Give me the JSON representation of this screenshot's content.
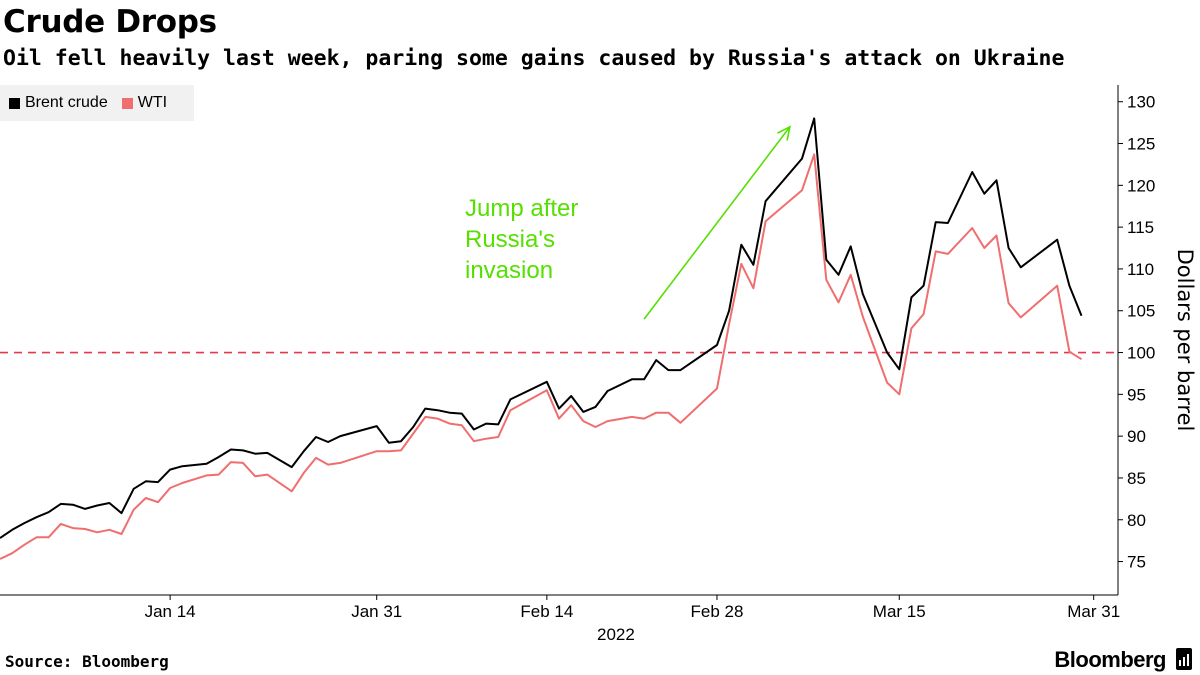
{
  "header": {
    "title": "Crude Drops",
    "subtitle": "Oil fell heavily last week, paring some gains caused by Russia's attack on Ukraine"
  },
  "footer": {
    "source": "Source: Bloomberg",
    "brand": "Bloomberg"
  },
  "chart_data": {
    "type": "line",
    "title": "Crude Drops",
    "subtitle": "Oil fell heavily last week, paring some gains caused by Russia's attack on Ukraine",
    "xlabel": "2022",
    "ylabel": "Dollars per barrel",
    "xlim": [
      "2021-12-31",
      "2022-04-02"
    ],
    "ylim": [
      71,
      132
    ],
    "y_ticks": [
      75,
      80,
      85,
      90,
      95,
      100,
      105,
      110,
      115,
      120,
      125,
      130
    ],
    "x_ticks": [
      {
        "date": "2022-01-14",
        "label": "Jan 14"
      },
      {
        "date": "2022-01-31",
        "label": "Jan 31"
      },
      {
        "date": "2022-02-14",
        "label": "Feb 14"
      },
      {
        "date": "2022-02-28",
        "label": "Feb 28"
      },
      {
        "date": "2022-03-15",
        "label": "Mar 15"
      },
      {
        "date": "2022-03-31",
        "label": "Mar 31"
      }
    ],
    "y_axis_side": "right",
    "grid": false,
    "legend_position": "top-left",
    "reference_line": {
      "value": 100,
      "color": "#e8374a",
      "style": "dashed"
    },
    "annotation": {
      "text": [
        "Jump after",
        "Russia's",
        "invasion"
      ],
      "color": "#55e000",
      "arrow_start": {
        "date": "2022-02-22",
        "value": 104
      },
      "arrow_end": {
        "date": "2022-03-06",
        "value": 127
      }
    },
    "series": [
      {
        "name": "Brent crude",
        "color": "#000000",
        "points": [
          [
            "2021-12-31",
            77.8
          ],
          [
            "2022-01-01",
            78.8
          ],
          [
            "2022-01-02",
            79.6
          ],
          [
            "2022-01-03",
            80.3
          ],
          [
            "2022-01-04",
            80.9
          ],
          [
            "2022-01-05",
            81.9
          ],
          [
            "2022-01-06",
            81.8
          ],
          [
            "2022-01-07",
            81.3
          ],
          [
            "2022-01-08",
            81.7
          ],
          [
            "2022-01-09",
            82.0
          ],
          [
            "2022-01-10",
            80.8
          ],
          [
            "2022-01-11",
            83.7
          ],
          [
            "2022-01-12",
            84.6
          ],
          [
            "2022-01-13",
            84.5
          ],
          [
            "2022-01-14",
            86.0
          ],
          [
            "2022-01-15",
            86.4
          ],
          [
            "2022-01-17",
            86.7
          ],
          [
            "2022-01-18",
            87.5
          ],
          [
            "2022-01-19",
            88.4
          ],
          [
            "2022-01-20",
            88.3
          ],
          [
            "2022-01-21",
            87.9
          ],
          [
            "2022-01-22",
            88.0
          ],
          [
            "2022-01-24",
            86.3
          ],
          [
            "2022-01-25",
            88.2
          ],
          [
            "2022-01-26",
            89.9
          ],
          [
            "2022-01-27",
            89.3
          ],
          [
            "2022-01-28",
            90.0
          ],
          [
            "2022-01-31",
            91.2
          ],
          [
            "2022-02-01",
            89.2
          ],
          [
            "2022-02-02",
            89.4
          ],
          [
            "2022-02-03",
            91.1
          ],
          [
            "2022-02-04",
            93.3
          ],
          [
            "2022-02-05",
            93.1
          ],
          [
            "2022-02-06",
            92.8
          ],
          [
            "2022-02-07",
            92.7
          ],
          [
            "2022-02-08",
            90.8
          ],
          [
            "2022-02-09",
            91.5
          ],
          [
            "2022-02-10",
            91.4
          ],
          [
            "2022-02-11",
            94.4
          ],
          [
            "2022-02-14",
            96.5
          ],
          [
            "2022-02-15",
            93.3
          ],
          [
            "2022-02-16",
            94.8
          ],
          [
            "2022-02-17",
            92.9
          ],
          [
            "2022-02-18",
            93.5
          ],
          [
            "2022-02-19",
            95.4
          ],
          [
            "2022-02-21",
            96.8
          ],
          [
            "2022-02-22",
            96.8
          ],
          [
            "2022-02-23",
            99.1
          ],
          [
            "2022-02-24",
            97.9
          ],
          [
            "2022-02-25",
            97.9
          ],
          [
            "2022-02-28",
            100.9
          ],
          [
            "2022-03-01",
            105.0
          ],
          [
            "2022-03-02",
            112.9
          ],
          [
            "2022-03-03",
            110.5
          ],
          [
            "2022-03-04",
            118.1
          ],
          [
            "2022-03-07",
            123.2
          ],
          [
            "2022-03-08",
            128.0
          ],
          [
            "2022-03-09",
            111.1
          ],
          [
            "2022-03-10",
            109.3
          ],
          [
            "2022-03-11",
            112.7
          ],
          [
            "2022-03-12",
            107.0
          ],
          [
            "2022-03-14",
            100.0
          ],
          [
            "2022-03-15",
            98.0
          ],
          [
            "2022-03-16",
            106.6
          ],
          [
            "2022-03-17",
            108.0
          ],
          [
            "2022-03-18",
            115.6
          ],
          [
            "2022-03-19",
            115.5
          ],
          [
            "2022-03-21",
            121.6
          ],
          [
            "2022-03-22",
            119.0
          ],
          [
            "2022-03-23",
            120.6
          ],
          [
            "2022-03-24",
            112.5
          ],
          [
            "2022-03-25",
            110.2
          ],
          [
            "2022-03-28",
            113.5
          ],
          [
            "2022-03-29",
            108.0
          ],
          [
            "2022-03-30",
            104.4
          ]
        ]
      },
      {
        "name": "WTI",
        "color": "#f06e6e",
        "points": [
          [
            "2021-12-31",
            75.3
          ],
          [
            "2022-01-01",
            76.0
          ],
          [
            "2022-01-02",
            77.0
          ],
          [
            "2022-01-03",
            77.9
          ],
          [
            "2022-01-04",
            77.9
          ],
          [
            "2022-01-05",
            79.5
          ],
          [
            "2022-01-06",
            79.0
          ],
          [
            "2022-01-07",
            78.9
          ],
          [
            "2022-01-08",
            78.5
          ],
          [
            "2022-01-09",
            78.8
          ],
          [
            "2022-01-10",
            78.3
          ],
          [
            "2022-01-11",
            81.2
          ],
          [
            "2022-01-12",
            82.6
          ],
          [
            "2022-01-13",
            82.1
          ],
          [
            "2022-01-14",
            83.8
          ],
          [
            "2022-01-15",
            84.4
          ],
          [
            "2022-01-17",
            85.3
          ],
          [
            "2022-01-18",
            85.4
          ],
          [
            "2022-01-19",
            86.9
          ],
          [
            "2022-01-20",
            86.8
          ],
          [
            "2022-01-21",
            85.2
          ],
          [
            "2022-01-22",
            85.4
          ],
          [
            "2022-01-24",
            83.4
          ],
          [
            "2022-01-25",
            85.6
          ],
          [
            "2022-01-26",
            87.4
          ],
          [
            "2022-01-27",
            86.6
          ],
          [
            "2022-01-28",
            86.8
          ],
          [
            "2022-01-31",
            88.2
          ],
          [
            "2022-02-01",
            88.2
          ],
          [
            "2022-02-02",
            88.3
          ],
          [
            "2022-02-03",
            90.3
          ],
          [
            "2022-02-04",
            92.3
          ],
          [
            "2022-02-05",
            92.1
          ],
          [
            "2022-02-06",
            91.5
          ],
          [
            "2022-02-07",
            91.3
          ],
          [
            "2022-02-08",
            89.4
          ],
          [
            "2022-02-09",
            89.7
          ],
          [
            "2022-02-10",
            89.9
          ],
          [
            "2022-02-11",
            93.1
          ],
          [
            "2022-02-14",
            95.5
          ],
          [
            "2022-02-15",
            92.1
          ],
          [
            "2022-02-16",
            93.7
          ],
          [
            "2022-02-17",
            91.8
          ],
          [
            "2022-02-18",
            91.1
          ],
          [
            "2022-02-19",
            91.8
          ],
          [
            "2022-02-21",
            92.3
          ],
          [
            "2022-02-22",
            92.1
          ],
          [
            "2022-02-23",
            92.8
          ],
          [
            "2022-02-24",
            92.8
          ],
          [
            "2022-02-25",
            91.6
          ],
          [
            "2022-02-28",
            95.7
          ],
          [
            "2022-03-01",
            103.4
          ],
          [
            "2022-03-02",
            110.6
          ],
          [
            "2022-03-03",
            107.7
          ],
          [
            "2022-03-04",
            115.7
          ],
          [
            "2022-03-07",
            119.4
          ],
          [
            "2022-03-08",
            123.7
          ],
          [
            "2022-03-09",
            108.7
          ],
          [
            "2022-03-10",
            106.0
          ],
          [
            "2022-03-11",
            109.3
          ],
          [
            "2022-03-12",
            104.3
          ],
          [
            "2022-03-14",
            96.4
          ],
          [
            "2022-03-15",
            95.0
          ],
          [
            "2022-03-16",
            102.9
          ],
          [
            "2022-03-17",
            104.6
          ],
          [
            "2022-03-18",
            112.1
          ],
          [
            "2022-03-19",
            111.8
          ],
          [
            "2022-03-21",
            114.9
          ],
          [
            "2022-03-22",
            112.5
          ],
          [
            "2022-03-23",
            114.0
          ],
          [
            "2022-03-24",
            105.9
          ],
          [
            "2022-03-25",
            104.2
          ],
          [
            "2022-03-28",
            108.0
          ],
          [
            "2022-03-29",
            100.1
          ],
          [
            "2022-03-30",
            99.2
          ]
        ]
      }
    ]
  }
}
